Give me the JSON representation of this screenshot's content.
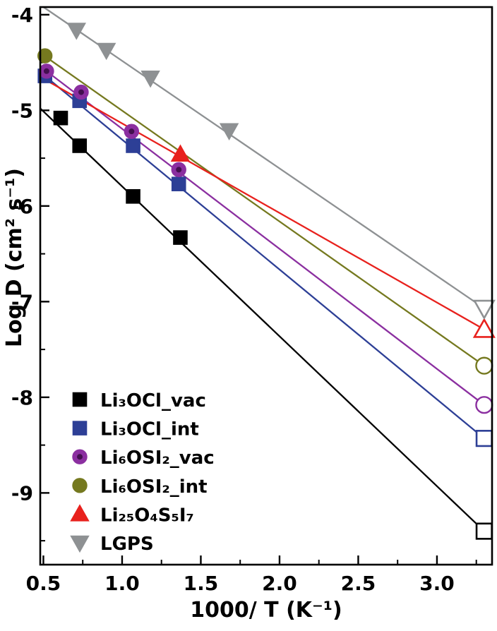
{
  "chart_data": {
    "type": "scatter",
    "subtype": "arrhenius-plot-with-fit-lines",
    "title": "",
    "xlabel": "1000/ T (K⁻¹)",
    "ylabel": "Log D (cm² s⁻¹)",
    "xlim": [
      0.48,
      3.35
    ],
    "ylim": [
      -9.75,
      -3.92
    ],
    "xtick_labels": [
      "0.5",
      "1.0",
      "1.5",
      "2.0",
      "2.5",
      "3.0"
    ],
    "xtick_values": [
      0.5,
      1.0,
      1.5,
      2.0,
      2.5,
      3.0
    ],
    "x_minor_ticks": [
      0.75,
      1.25,
      1.75,
      2.25,
      2.75,
      3.25
    ],
    "ytick_labels": [
      "-4",
      "-5",
      "-6",
      "-7",
      "-8",
      "-9"
    ],
    "ytick_values": [
      -4,
      -5,
      -6,
      -7,
      -8,
      -9
    ],
    "y_minor_ticks": [
      -4.5,
      -5.5,
      -6.5,
      -7.5,
      -8.5,
      -9.5
    ],
    "grid": false,
    "frame_color": "#000000",
    "background": "#ffffff",
    "legend_position": "inside-bottom-left",
    "series": [
      {
        "id": "li3ocl-vac",
        "name": "Li₃OCl_vac",
        "color": "#000000",
        "marker": "square",
        "filled_points": [
          [
            0.61,
            -5.08
          ],
          [
            0.73,
            -5.37
          ],
          [
            1.07,
            -5.9
          ],
          [
            1.37,
            -6.33
          ]
        ],
        "open_points": [
          [
            3.3,
            -9.4
          ]
        ],
        "line": [
          [
            0.48,
            -4.98
          ],
          [
            3.3,
            -9.4
          ]
        ]
      },
      {
        "id": "li3ocl-int",
        "name": "Li₃OCl_int",
        "color": "#2d3f96",
        "marker": "square",
        "filled_points": [
          [
            0.51,
            -4.64
          ],
          [
            0.73,
            -4.9
          ],
          [
            1.07,
            -5.37
          ],
          [
            1.36,
            -5.77
          ]
        ],
        "open_points": [
          [
            3.3,
            -8.43
          ]
        ],
        "line": [
          [
            0.48,
            -4.6
          ],
          [
            3.3,
            -8.43
          ]
        ]
      },
      {
        "id": "li6osi2-vac",
        "name": "Li₆OSI₂_vac",
        "color": "#8b2fa0",
        "center_color": "#43104f",
        "marker": "circle",
        "filled_points": [
          [
            0.52,
            -4.59
          ],
          [
            0.74,
            -4.81
          ],
          [
            1.06,
            -5.22
          ],
          [
            1.36,
            -5.62
          ]
        ],
        "open_points": [
          [
            3.3,
            -8.08
          ]
        ],
        "line": [
          [
            0.48,
            -4.54
          ],
          [
            3.3,
            -8.08
          ]
        ]
      },
      {
        "id": "li6osi2-int",
        "name": "Li₆OSI₂_int",
        "color": "#75791f",
        "marker": "circle",
        "filled_points": [
          [
            0.51,
            -4.43
          ]
        ],
        "open_points": [
          [
            3.3,
            -7.67
          ]
        ],
        "line": [
          [
            0.48,
            -4.4
          ],
          [
            3.3,
            -7.67
          ]
        ]
      },
      {
        "id": "li25o4s5i7",
        "name": "Li₂₅O₄S₅I₇",
        "color": "#e8211d",
        "marker": "triangle-up",
        "filled_points": [
          [
            1.37,
            -5.46
          ]
        ],
        "open_points": [
          [
            3.3,
            -7.29
          ]
        ],
        "line": [
          [
            0.48,
            -4.65
          ],
          [
            3.3,
            -7.29
          ]
        ]
      },
      {
        "id": "lgps",
        "name": "LGPS",
        "color": "#8e9193",
        "marker": "triangle-down",
        "filled_points": [
          [
            0.71,
            -4.16
          ],
          [
            0.9,
            -4.37
          ],
          [
            1.18,
            -4.66
          ],
          [
            1.68,
            -5.21
          ]
        ],
        "open_points": [
          [
            3.3,
            -7.07
          ]
        ],
        "line": [
          [
            0.5,
            -3.92
          ],
          [
            3.3,
            -7.07
          ]
        ]
      }
    ]
  }
}
